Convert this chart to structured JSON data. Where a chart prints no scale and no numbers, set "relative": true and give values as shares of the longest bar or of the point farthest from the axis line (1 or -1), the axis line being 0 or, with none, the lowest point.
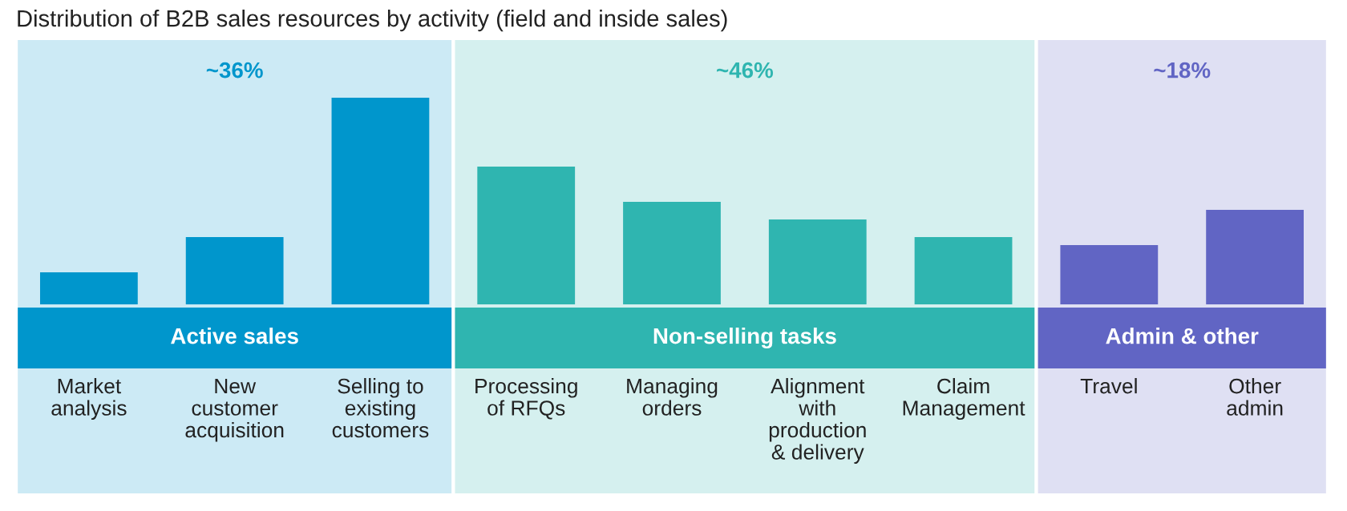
{
  "chart_data": {
    "type": "bar",
    "title": "Distribution of B2B sales resources by activity (field and inside sales)",
    "relative": true,
    "categories": [
      "Market\nanalysis",
      "New\ncustomer\nacquisition",
      "Selling to\nexisting\ncustomers",
      "Processing\nof RFQs",
      "Managing\norders",
      "Alignment\nwith\nproduction\n& delivery",
      "Claim\nManagement",
      "Travel",
      "Other\nadmin"
    ],
    "values": [
      0.155,
      0.326,
      1,
      0.667,
      0.496,
      0.411,
      0.326,
      0.287,
      0.457
    ],
    "colors": [
      "#0096cc",
      "#0096cc",
      "#0096cc",
      "#2fb5b0",
      "#2fb5b0",
      "#2fb5b0",
      "#2fb5b0",
      "#6165c4",
      "#6165c4"
    ],
    "bands": [
      {
        "axis": "x",
        "from": "Market\nanalysis",
        "to": "Selling to\nexisting\ncustomers",
        "label": "Active sales",
        "color": "#cceaf5"
      },
      {
        "axis": "x",
        "from": "Processing\nof RFQs",
        "to": "Claim\nManagement",
        "label": "Non-selling tasks",
        "color": "#d5f0ef"
      },
      {
        "axis": "x",
        "from": "Travel",
        "to": "Other\nadmin",
        "label": "Admin & other",
        "color": "#dfe0f3"
      }
    ],
    "annotations": [
      "~36%",
      "~46%",
      "~18%"
    ],
    "legend": false
  }
}
